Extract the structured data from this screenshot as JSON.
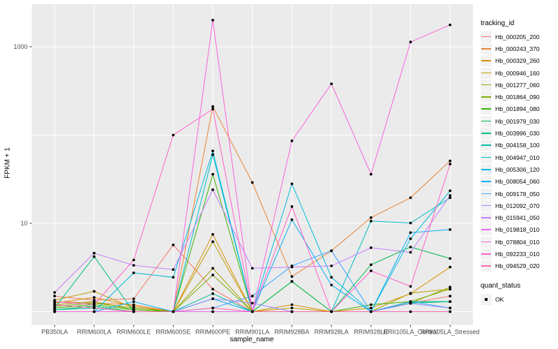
{
  "chart_data": {
    "type": "line",
    "title": "",
    "xlabel": "sample_name",
    "ylabel": "FPKM + 1",
    "scale": "log10",
    "ylim": [
      0.7,
      3000
    ],
    "y_ticks": [
      10,
      1000
    ],
    "y_gridlines": [
      1,
      10,
      100,
      1000
    ],
    "legend_position": "right",
    "grid": true,
    "point_color": "#000000",
    "panel_color": "#EBEBEB",
    "categories": [
      "PB350LA",
      "RRIM600LA",
      "RRIM600LE",
      "RRIM600SE",
      "RRIM600PE",
      "RRIM901LA",
      "RRIM928BA",
      "RRIM928LA",
      "RRIM928LE",
      "RRII105LA_Control",
      "RRII105LA_Stressed"
    ],
    "series": [
      {
        "name": "Hb_000205_200",
        "color": "#F8766D",
        "values": [
          1.5,
          1.35,
          1.4,
          5.7,
          1.8,
          1,
          1,
          1,
          1,
          1.25,
          1.5
        ]
      },
      {
        "name": "Hb_000243_370",
        "color": "#EA8331",
        "values": [
          1.3,
          1.25,
          1.2,
          1,
          210,
          29,
          2.5,
          4.9,
          11.6,
          19.5,
          51
        ]
      },
      {
        "name": "Hb_000329_260",
        "color": "#D89000",
        "values": [
          1.25,
          1.45,
          1.15,
          1,
          7.5,
          1,
          1.2,
          1,
          1.1,
          1.6,
          3.2
        ]
      },
      {
        "name": "Hb_000946_160",
        "color": "#C09B00",
        "values": [
          1.35,
          1.7,
          1.1,
          1,
          6.2,
          1,
          1.1,
          1,
          1,
          1.62,
          1.8
        ]
      },
      {
        "name": "Hb_001277_060",
        "color": "#A3A500",
        "values": [
          1.2,
          1.3,
          1.05,
          1,
          3.1,
          1,
          1,
          1,
          1,
          1.3,
          1.8
        ]
      },
      {
        "name": "Hb_001864_090",
        "color": "#7CAE00",
        "values": [
          1.15,
          1.25,
          1.1,
          1,
          2.6,
          1,
          1,
          1,
          1,
          1.25,
          1.9
        ]
      },
      {
        "name": "Hb_001894_080",
        "color": "#39B600",
        "values": [
          1.1,
          1.2,
          1.05,
          1,
          36,
          1,
          2.2,
          1,
          1.2,
          1.3,
          1.3
        ]
      },
      {
        "name": "Hb_001979_030",
        "color": "#00BB4E",
        "values": [
          1.05,
          1.15,
          1,
          1,
          1,
          1,
          2.2,
          1,
          3.4,
          5.4,
          4.0
        ]
      },
      {
        "name": "Hb_003996_030",
        "color": "#00BF7D",
        "values": [
          1.1,
          4.2,
          1,
          1,
          1,
          1,
          1,
          1,
          1,
          1.25,
          1.3
        ]
      },
      {
        "name": "Hb_004158_100",
        "color": "#00C1A3",
        "values": [
          1.05,
          1.1,
          1,
          1,
          1.6,
          1,
          1,
          1,
          1,
          1.3,
          1.3
        ]
      },
      {
        "name": "Hb_004947_010",
        "color": "#00BFC4",
        "values": [
          1,
          1,
          1,
          1,
          60,
          1,
          1,
          1,
          10.6,
          10.1,
          19.5
        ]
      },
      {
        "name": "Hb_005306_120",
        "color": "#00BAE0",
        "values": [
          1,
          1,
          2.75,
          2.45,
          66,
          1,
          28,
          2.45,
          1,
          6.7,
          23.4
        ]
      },
      {
        "name": "Hb_008054_060",
        "color": "#00B0F6",
        "values": [
          1,
          1,
          1.3,
          1,
          1.4,
          1,
          11,
          2,
          1,
          7.85,
          8.5
        ]
      },
      {
        "name": "Hb_009178_050",
        "color": "#35A2FF",
        "values": [
          1,
          1,
          1,
          1,
          1.1,
          1.5,
          3.3,
          4.9,
          1,
          1.3,
          1.1
        ]
      },
      {
        "name": "Hb_012092_070",
        "color": "#9590FF",
        "values": [
          1,
          1,
          1,
          1,
          1.4,
          1.25,
          1,
          1,
          1,
          1.24,
          1.1
        ]
      },
      {
        "name": "Hb_015941_050",
        "color": "#C77CFF",
        "values": [
          1.65,
          4.6,
          3.35,
          3.0,
          24,
          3.1,
          3.2,
          3.3,
          5.3,
          4.7,
          20.7
        ]
      },
      {
        "name": "Hb_019818_010",
        "color": "#E76BF3",
        "values": [
          1,
          1,
          1,
          1,
          1,
          1,
          1,
          1,
          1,
          1,
          1
        ]
      },
      {
        "name": "Hb_078804_010",
        "color": "#FA62DB",
        "values": [
          1,
          1,
          1,
          1,
          2000,
          1,
          86,
          380,
          36,
          1130,
          1770
        ]
      },
      {
        "name": "Hb_092233_010",
        "color": "#FF61C9",
        "values": [
          1.3,
          1.2,
          3.85,
          100,
          197,
          1,
          15.5,
          1,
          2.9,
          1.93,
          47
        ]
      },
      {
        "name": "Hb_094529_020",
        "color": "#FF65AE",
        "values": [
          1.2,
          1.1,
          1,
          1,
          1.1,
          1,
          1,
          1,
          1,
          1,
          1
        ]
      }
    ]
  },
  "legend": {
    "tracking_title": "tracking_id",
    "quant_title": "quant_status",
    "quant_ok_label": "OK"
  }
}
